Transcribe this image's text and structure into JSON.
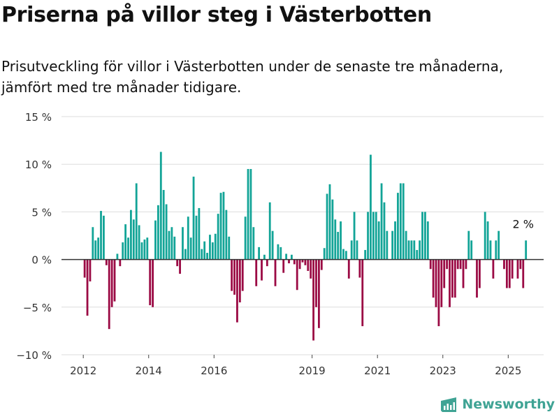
{
  "header": {
    "title": "Priserna på villor steg i Västerbotten",
    "subtitle": "Prisutveckling för villor i Västerbotten under de senaste tre månaderna, jämfört med tre månader tidigare."
  },
  "brand": {
    "name": "Newsworthy",
    "icon": "newsworthy-logo-icon",
    "color": "#3fa394"
  },
  "colors": {
    "positive": "#12a497",
    "negative": "#9b0a44",
    "grid": "#dddddd",
    "zero_line": "#333333"
  },
  "chart_data": {
    "type": "bar",
    "title": "Priserna på villor steg i Västerbotten",
    "ylim": [
      -10,
      15
    ],
    "yticks": [
      -10,
      -5,
      0,
      5,
      10,
      15
    ],
    "ytick_labels": [
      "−10 %",
      "−5 %",
      "0 %",
      "5 %",
      "10 %",
      "15 %"
    ],
    "xticks": [
      2012,
      2014,
      2016,
      2019,
      2021,
      2023,
      2025
    ],
    "xlim": [
      "2011-05",
      "2026-02"
    ],
    "annotation": {
      "text": "2 %",
      "date": "2025-06"
    },
    "series": [
      {
        "name": "Prisutveckling",
        "values": [
          [
            "2012-01",
            -1.9
          ],
          [
            "2012-02",
            -5.9
          ],
          [
            "2012-03",
            -2.3
          ],
          [
            "2012-04",
            3.4
          ],
          [
            "2012-05",
            2.0
          ],
          [
            "2012-06",
            2.3
          ],
          [
            "2012-07",
            5.1
          ],
          [
            "2012-08",
            4.6
          ],
          [
            "2012-09",
            -0.6
          ],
          [
            "2012-10",
            -7.3
          ],
          [
            "2012-11",
            -5.0
          ],
          [
            "2012-12",
            -4.4
          ],
          [
            "2013-01",
            0.6
          ],
          [
            "2013-02",
            -0.7
          ],
          [
            "2013-03",
            1.8
          ],
          [
            "2013-04",
            3.7
          ],
          [
            "2013-05",
            2.3
          ],
          [
            "2013-06",
            5.2
          ],
          [
            "2013-07",
            4.2
          ],
          [
            "2013-08",
            8.0
          ],
          [
            "2013-09",
            3.6
          ],
          [
            "2013-10",
            1.8
          ],
          [
            "2013-11",
            2.1
          ],
          [
            "2013-12",
            2.3
          ],
          [
            "2014-01",
            -4.8
          ],
          [
            "2014-02",
            -5.0
          ],
          [
            "2014-03",
            4.1
          ],
          [
            "2014-04",
            5.7
          ],
          [
            "2014-05",
            11.3
          ],
          [
            "2014-06",
            7.3
          ],
          [
            "2014-07",
            5.8
          ],
          [
            "2014-08",
            3.0
          ],
          [
            "2014-09",
            3.4
          ],
          [
            "2014-10",
            2.4
          ],
          [
            "2014-11",
            -0.7
          ],
          [
            "2014-12",
            -1.5
          ],
          [
            "2015-01",
            3.4
          ],
          [
            "2015-02",
            1.1
          ],
          [
            "2015-03",
            4.5
          ],
          [
            "2015-04",
            2.3
          ],
          [
            "2015-05",
            8.7
          ],
          [
            "2015-06",
            4.6
          ],
          [
            "2015-07",
            5.4
          ],
          [
            "2015-08",
            1.1
          ],
          [
            "2015-09",
            1.9
          ],
          [
            "2015-10",
            0.7
          ],
          [
            "2015-11",
            2.6
          ],
          [
            "2015-12",
            1.8
          ],
          [
            "2016-01",
            2.7
          ],
          [
            "2016-02",
            4.8
          ],
          [
            "2016-03",
            7.0
          ],
          [
            "2016-04",
            7.1
          ],
          [
            "2016-05",
            5.2
          ],
          [
            "2016-06",
            2.4
          ],
          [
            "2016-07",
            -3.3
          ],
          [
            "2016-08",
            -3.7
          ],
          [
            "2016-09",
            -6.6
          ],
          [
            "2016-10",
            -4.5
          ],
          [
            "2016-11",
            -3.3
          ],
          [
            "2016-12",
            4.5
          ],
          [
            "2017-01",
            9.5
          ],
          [
            "2017-02",
            9.5
          ],
          [
            "2017-03",
            3.4
          ],
          [
            "2017-04",
            -2.8
          ],
          [
            "2017-05",
            1.3
          ],
          [
            "2017-06",
            -2.2
          ],
          [
            "2017-07",
            0.5
          ],
          [
            "2017-08",
            -0.7
          ],
          [
            "2017-09",
            6.0
          ],
          [
            "2017-10",
            3.0
          ],
          [
            "2017-11",
            -2.8
          ],
          [
            "2017-12",
            1.6
          ],
          [
            "2018-01",
            1.3
          ],
          [
            "2018-02",
            -1.4
          ],
          [
            "2018-03",
            0.6
          ],
          [
            "2018-04",
            -0.4
          ],
          [
            "2018-05",
            0.5
          ],
          [
            "2018-06",
            -0.5
          ],
          [
            "2018-07",
            -3.2
          ],
          [
            "2018-08",
            -1.0
          ],
          [
            "2018-09",
            -0.3
          ],
          [
            "2018-10",
            -0.6
          ],
          [
            "2018-11",
            -1.2
          ],
          [
            "2018-12",
            -2.0
          ],
          [
            "2019-01",
            -8.5
          ],
          [
            "2019-02",
            -5.0
          ],
          [
            "2019-03",
            -7.2
          ],
          [
            "2019-04",
            -1.1
          ],
          [
            "2019-05",
            1.2
          ],
          [
            "2019-06",
            6.9
          ],
          [
            "2019-07",
            7.9
          ],
          [
            "2019-08",
            6.3
          ],
          [
            "2019-09",
            4.2
          ],
          [
            "2019-10",
            2.9
          ],
          [
            "2019-11",
            4.0
          ],
          [
            "2019-12",
            1.1
          ],
          [
            "2020-01",
            0.9
          ],
          [
            "2020-02",
            -2.0
          ],
          [
            "2020-03",
            2.0
          ],
          [
            "2020-04",
            5.0
          ],
          [
            "2020-05",
            2.0
          ],
          [
            "2020-06",
            -1.9
          ],
          [
            "2020-07",
            -7.0
          ],
          [
            "2020-08",
            1.0
          ],
          [
            "2020-09",
            5.0
          ],
          [
            "2020-10",
            11.0
          ],
          [
            "2020-11",
            5.0
          ],
          [
            "2020-12",
            5.0
          ],
          [
            "2021-01",
            4.0
          ],
          [
            "2021-02",
            8.0
          ],
          [
            "2021-03",
            6.0
          ],
          [
            "2021-04",
            3.0
          ],
          [
            "2021-05",
            0.0
          ],
          [
            "2021-06",
            3.0
          ],
          [
            "2021-07",
            4.0
          ],
          [
            "2021-08",
            7.0
          ],
          [
            "2021-09",
            8.0
          ],
          [
            "2021-10",
            8.0
          ],
          [
            "2021-11",
            3.0
          ],
          [
            "2021-12",
            2.0
          ],
          [
            "2022-01",
            2.0
          ],
          [
            "2022-02",
            2.0
          ],
          [
            "2022-03",
            1.0
          ],
          [
            "2022-04",
            2.0
          ],
          [
            "2022-05",
            5.0
          ],
          [
            "2022-06",
            5.0
          ],
          [
            "2022-07",
            4.0
          ],
          [
            "2022-08",
            -1.0
          ],
          [
            "2022-09",
            -4.0
          ],
          [
            "2022-10",
            -5.0
          ],
          [
            "2022-11",
            -7.0
          ],
          [
            "2022-12",
            -5.0
          ],
          [
            "2023-01",
            -3.0
          ],
          [
            "2023-02",
            -1.0
          ],
          [
            "2023-03",
            -5.0
          ],
          [
            "2023-04",
            -4.0
          ],
          [
            "2023-05",
            -4.0
          ],
          [
            "2023-06",
            -1.0
          ],
          [
            "2023-07",
            -1.0
          ],
          [
            "2023-08",
            -3.0
          ],
          [
            "2023-09",
            -1.0
          ],
          [
            "2023-10",
            3.0
          ],
          [
            "2023-11",
            2.0
          ],
          [
            "2023-12",
            0.0
          ],
          [
            "2024-01",
            -4.0
          ],
          [
            "2024-02",
            -3.0
          ],
          [
            "2024-03",
            0.0
          ],
          [
            "2024-04",
            5.0
          ],
          [
            "2024-05",
            4.0
          ],
          [
            "2024-06",
            2.0
          ],
          [
            "2024-07",
            -2.0
          ],
          [
            "2024-08",
            2.0
          ],
          [
            "2024-09",
            3.0
          ],
          [
            "2024-10",
            0.0
          ],
          [
            "2024-11",
            -1.0
          ],
          [
            "2024-12",
            -3.0
          ],
          [
            "2025-01",
            -3.0
          ],
          [
            "2025-02",
            -2.0
          ],
          [
            "2025-03",
            0.0
          ],
          [
            "2025-04",
            -2.0
          ],
          [
            "2025-05",
            -1.0
          ],
          [
            "2025-06",
            -3.0
          ],
          [
            "2025-07",
            2.0
          ]
        ]
      }
    ],
    "grid": true,
    "legend": "none"
  }
}
